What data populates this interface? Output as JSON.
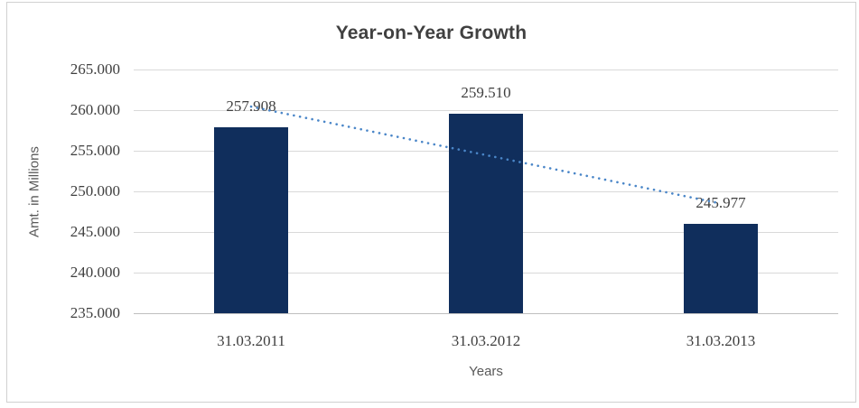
{
  "window": {
    "background": "#ffffff",
    "frame_border_color": "#d1d1d1"
  },
  "chart_data": {
    "type": "bar",
    "title": "Year-on-Year Growth",
    "xlabel": "Years",
    "ylabel": "Amt. in Millions",
    "categories": [
      "31.03.2011",
      "31.03.2012",
      "31.03.2013"
    ],
    "values": [
      257.908,
      259.51,
      245.977
    ],
    "data_labels": [
      "257.908",
      "259.510",
      "245.977"
    ],
    "yticks": [
      235,
      240,
      245,
      250,
      255,
      260,
      265
    ],
    "ytick_labels": [
      "235.000",
      "240.000",
      "245.000",
      "250.000",
      "255.000",
      "260.000",
      "265.000"
    ],
    "ylim": [
      235,
      265
    ],
    "grid": true,
    "legend": false,
    "trendline": {
      "type": "linear",
      "style": "dotted"
    },
    "colors": {
      "bar": "#102e5c",
      "trendline": "#4a86c8",
      "title": "#404040",
      "labels": "#3f3f3f",
      "axis_titles": "#595959",
      "gridline": "#d9d9d9",
      "axis_line": "#bfbfbf",
      "frame": "#d1d1d1"
    }
  }
}
